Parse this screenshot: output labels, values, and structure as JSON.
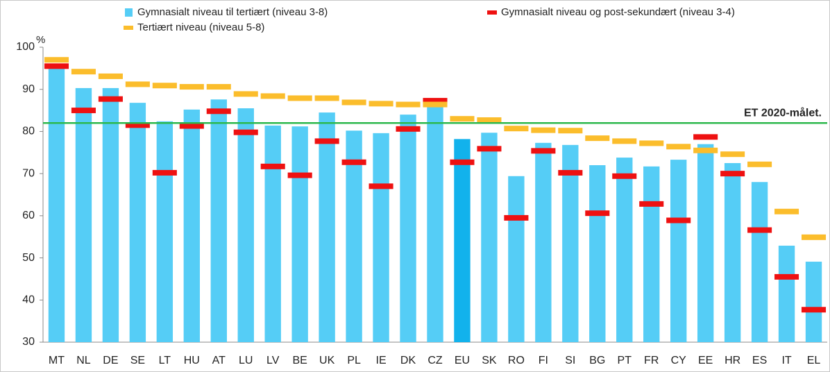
{
  "chart_data": {
    "type": "bar",
    "y_label": "%",
    "categories": [
      "MT",
      "NL",
      "DE",
      "SE",
      "LT",
      "HU",
      "AT",
      "LU",
      "LV",
      "BE",
      "UK",
      "PL",
      "IE",
      "DK",
      "CZ",
      "EU",
      "SK",
      "RO",
      "FI",
      "SI",
      "BG",
      "PT",
      "FR",
      "CY",
      "EE",
      "HR",
      "ES",
      "IT",
      "EL"
    ],
    "series": [
      {
        "name": "Gymnasialt niveau til tertiært (niveau 3-8)",
        "kind": "bar",
        "color": "#55cdf6",
        "values": [
          95.5,
          90.3,
          90.3,
          86.8,
          82.4,
          85.2,
          87.6,
          85.5,
          81.4,
          81.2,
          84.5,
          80.2,
          79.6,
          84.0,
          86.2,
          78.2,
          79.7,
          69.4,
          77.3,
          76.8,
          72.0,
          73.8,
          71.7,
          73.3,
          77.0,
          72.5,
          68.0,
          52.9,
          49.1
        ]
      },
      {
        "name": "Gymnasialt niveau og post-sekundært (niveau 3-4)",
        "kind": "marker",
        "color": "#ee1111",
        "values": [
          95.5,
          85.0,
          87.7,
          81.5,
          70.2,
          81.3,
          84.8,
          79.8,
          71.7,
          69.6,
          77.7,
          72.7,
          67.0,
          80.6,
          87.3,
          72.7,
          75.9,
          59.5,
          75.4,
          70.2,
          60.6,
          69.4,
          62.8,
          58.9,
          78.7,
          70.0,
          56.6,
          45.5,
          37.7
        ]
      },
      {
        "name": "Tertiært niveau (niveau 5-8)",
        "kind": "marker",
        "color": "#fbbd2c",
        "values": [
          97.0,
          94.2,
          93.1,
          91.2,
          90.9,
          90.6,
          90.6,
          88.9,
          88.4,
          87.9,
          87.9,
          86.9,
          86.6,
          86.4,
          86.4,
          83.0,
          82.7,
          80.7,
          80.3,
          80.2,
          78.4,
          77.7,
          77.2,
          76.4,
          75.5,
          74.6,
          72.2,
          61.0,
          54.9
        ]
      }
    ],
    "highlight": {
      "category": "EU",
      "color": "#12b2ec"
    },
    "reference_lines": [
      {
        "value": 82,
        "label": "ET 2020-målet.",
        "color": "#2cb84c"
      }
    ],
    "ylim": [
      30,
      100
    ],
    "yticks": [
      30,
      40,
      50,
      60,
      70,
      80,
      90,
      100
    ],
    "grid": false
  }
}
